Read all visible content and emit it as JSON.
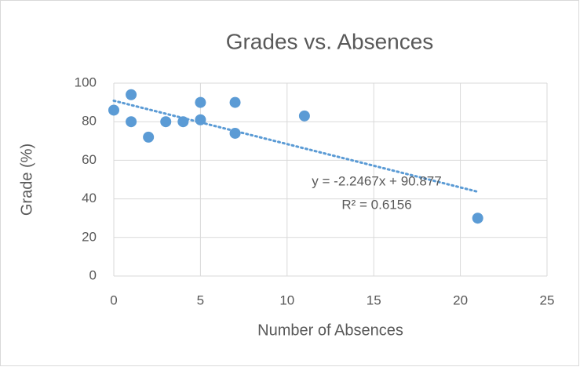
{
  "chart_data": {
    "type": "scatter",
    "title": "Grades vs. Absences",
    "xlabel": "Number of Absences",
    "ylabel": "Grade (%)",
    "series": [
      {
        "name": "Grade",
        "color": "#5b9bd5",
        "x": [
          0,
          1,
          1,
          2,
          3,
          4,
          5,
          5,
          7,
          7,
          11,
          21
        ],
        "values": [
          86,
          94,
          80,
          72,
          80,
          80,
          90,
          81,
          90,
          74,
          83,
          30
        ]
      }
    ],
    "trendline": {
      "slope": -2.2467,
      "intercept": 90.877,
      "x": [
        0,
        21
      ],
      "color": "#5b9bd5",
      "equation": "y = -2.2467x + 90.877",
      "r_squared": "R² = 0.6156"
    },
    "xlim": [
      0,
      25
    ],
    "xticks": [
      0,
      5,
      10,
      15,
      20,
      25
    ],
    "ylim": [
      0,
      100
    ],
    "yticks": [
      0,
      20,
      40,
      60,
      80,
      100
    ],
    "grid": true
  }
}
